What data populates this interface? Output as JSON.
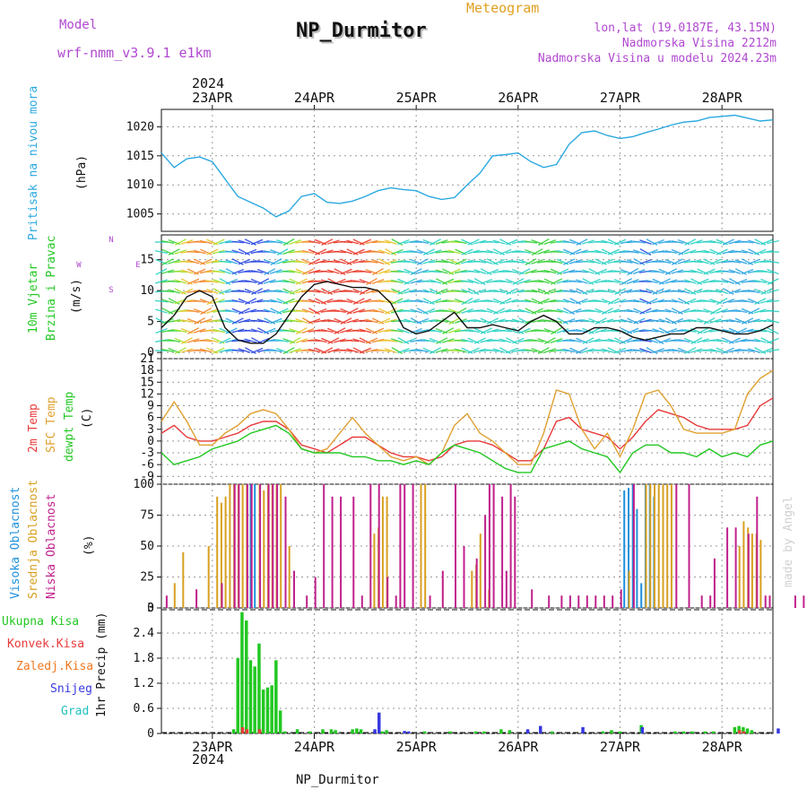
{
  "header": {
    "model_label": "Model",
    "model_value": "wrf-nmm_v3.9.1 e1km",
    "station": "NP_Durmitor",
    "product": "Meteogram",
    "coords": "lon,lat (19.0187E, 43.15N)",
    "elevation": "Nadmorska Visina 2212m",
    "model_elevation": "Nadmorska Visina u modelu 2024.23m"
  },
  "footer": {
    "station": "NP_Durmitor",
    "credit": "made by Angel"
  },
  "time_axis": {
    "year": "2024",
    "day_labels": [
      "23APR",
      "24APR",
      "25APR",
      "26APR",
      "27APR",
      "28APR"
    ],
    "start_hour_before_first_label": 12,
    "total_hours": 144
  },
  "colors": {
    "pressure": "#2aa8e0",
    "temp2m": "#e83a3a",
    "sfc": "#e0a030",
    "dewpt": "#22c822",
    "wind_speed": "#111111",
    "cloud_high": "#1e90dc",
    "cloud_mid": "#d8a020",
    "cloud_low": "#c0208c",
    "precip_total": "#22c822",
    "precip_conv": "#e83a3a",
    "precip_frz": "#f07820",
    "precip_snow": "#3838e0",
    "precip_grad": "#20c0c0"
  },
  "chart_data": [
    {
      "type": "line",
      "panel": "pressure",
      "ylabel": [
        "Pritisak na nivou mora",
        "(hPa)"
      ],
      "yticks": [
        1005,
        1010,
        1015,
        1020
      ],
      "ylim": [
        1002,
        1023
      ],
      "grid": true,
      "series": [
        {
          "name": "Pritisak na nivou mora",
          "x": [
            0,
            3,
            6,
            9,
            12,
            15,
            18,
            21,
            24,
            27,
            30,
            33,
            36,
            39,
            42,
            45,
            48,
            51,
            54,
            57,
            60,
            63,
            66,
            69,
            72,
            75,
            78,
            81,
            84,
            87,
            90,
            93,
            96,
            99,
            102,
            105,
            108,
            111,
            114,
            117,
            120,
            123,
            126,
            129,
            132,
            135,
            138,
            141,
            144
          ],
          "values": [
            1015.5,
            1013,
            1014.5,
            1014.8,
            1014,
            1011,
            1008,
            1007,
            1006,
            1004.5,
            1005.5,
            1008,
            1008.5,
            1007,
            1006.8,
            1007.2,
            1008,
            1009,
            1009.5,
            1009.2,
            1009,
            1008,
            1007.5,
            1007.8,
            1010,
            1012,
            1015,
            1015.2,
            1015.5,
            1014,
            1013,
            1013.5,
            1017,
            1019,
            1019.3,
            1018.5,
            1018,
            1018.3,
            1019,
            1019.6,
            1020.3,
            1020.8,
            1021,
            1021.6,
            1021.8,
            1022,
            1021.5,
            1021,
            1021.2
          ]
        }
      ]
    },
    {
      "type": "line",
      "panel": "wind",
      "ylabel": [
        "10m Vjetar",
        "Brzina i Pravac",
        "(m/s)"
      ],
      "yticks": [
        0,
        5,
        10,
        15
      ],
      "ylim": [
        -1,
        19
      ],
      "compass": [
        "N",
        "W",
        "E",
        "S"
      ],
      "grid": true,
      "series": [
        {
          "name": "10m Vjetar Brzina",
          "x": [
            0,
            3,
            6,
            9,
            12,
            15,
            18,
            21,
            24,
            27,
            30,
            33,
            36,
            39,
            42,
            45,
            48,
            51,
            54,
            57,
            60,
            63,
            66,
            69,
            72,
            75,
            78,
            81,
            84,
            87,
            90,
            93,
            96,
            99,
            102,
            105,
            108,
            111,
            114,
            117,
            120,
            123,
            126,
            129,
            132,
            135,
            138,
            141,
            144
          ],
          "values": [
            4,
            6,
            9,
            10,
            9,
            4,
            2,
            1.5,
            1.5,
            3,
            6,
            9,
            11,
            11.5,
            11,
            10.5,
            10.5,
            10,
            8,
            4,
            3,
            3.5,
            5,
            6.5,
            4,
            4,
            4.5,
            4,
            3.5,
            5,
            6,
            5,
            3,
            3,
            4,
            4,
            3.5,
            2.5,
            2,
            2.5,
            3,
            3,
            4,
            4,
            3.5,
            3,
            3,
            3.5,
            4.5
          ]
        }
      ]
    },
    {
      "type": "line",
      "panel": "temperature",
      "ylabel": [
        "2m Temp",
        "SFC Temp",
        "dewpt Temp",
        "(C)"
      ],
      "yticks": [
        -9,
        -6,
        -3,
        0,
        3,
        6,
        9,
        12,
        15,
        18,
        21
      ],
      "ylim": [
        -11,
        21
      ],
      "grid": true,
      "x": [
        0,
        3,
        6,
        9,
        12,
        15,
        18,
        21,
        24,
        27,
        30,
        33,
        36,
        39,
        42,
        45,
        48,
        51,
        54,
        57,
        60,
        63,
        66,
        69,
        72,
        75,
        78,
        81,
        84,
        87,
        90,
        93,
        96,
        99,
        102,
        105,
        108,
        111,
        114,
        117,
        120,
        123,
        126,
        129,
        132,
        135,
        138,
        141,
        144
      ],
      "series": [
        {
          "name": "2m Temp",
          "values": [
            2,
            4,
            1,
            0,
            0,
            1,
            2,
            4,
            5,
            5,
            3,
            -1,
            -2,
            -3,
            -1,
            1,
            1,
            -1,
            -3,
            -4,
            -4,
            -5,
            -4,
            -1,
            0,
            0,
            -1,
            -3,
            -5,
            -5,
            -2,
            5,
            6,
            3,
            2,
            1,
            -2,
            1,
            5,
            8,
            7,
            6,
            4,
            3,
            3,
            3,
            4,
            9,
            11
          ]
        },
        {
          "name": "SFC Temp",
          "values": [
            5,
            10,
            5,
            -1,
            -1,
            2,
            4,
            7,
            8,
            7,
            3,
            -2,
            -3,
            -2,
            2,
            6,
            2,
            -1,
            -4,
            -5,
            -4,
            -6,
            -3,
            4,
            7,
            2,
            0,
            -3,
            -6,
            -6,
            2,
            13,
            12,
            3,
            -2,
            2,
            -4,
            3,
            12,
            13,
            9,
            3,
            2,
            2,
            2,
            3,
            12,
            16,
            18
          ]
        },
        {
          "name": "dewpt Temp",
          "values": [
            -3,
            -6,
            -5,
            -4,
            -2,
            -1,
            0,
            2,
            3,
            4,
            2,
            -2,
            -3,
            -3,
            -3,
            -4,
            -4,
            -5,
            -5,
            -6,
            -5,
            -6,
            -3,
            -1,
            -2,
            -3,
            -5,
            -7,
            -8,
            -8,
            -2,
            -1,
            0,
            -2,
            -3,
            -4,
            -8,
            -3,
            -1,
            -1,
            -3,
            -3,
            -4,
            -2,
            -4,
            -3,
            -4,
            -1,
            0
          ]
        }
      ]
    },
    {
      "type": "bar",
      "panel": "clouds",
      "ylabel": [
        "Visoka Oblacnost",
        "Srednja Oblacnost",
        "Niska Oblacnost",
        "(%)"
      ],
      "yticks": [
        0,
        25,
        50,
        75,
        100
      ],
      "ylim": [
        0,
        100
      ],
      "grid": true,
      "series": [
        {
          "name": "Visoka Oblacnost",
          "x": [
            21,
            22,
            109,
            110,
            111,
            112,
            113,
            114,
            115,
            116
          ],
          "values": [
            100,
            100,
            95,
            97,
            100,
            80,
            20,
            100,
            100,
            90
          ]
        },
        {
          "name": "Srednja Oblacnost",
          "x": [
            3,
            5,
            11,
            13,
            14,
            15,
            16,
            17,
            18,
            19,
            20,
            23,
            24,
            25,
            26,
            27,
            28,
            30,
            50,
            51,
            52,
            53,
            61,
            62,
            73,
            74,
            75,
            77,
            110,
            114,
            115,
            116,
            117,
            118,
            119,
            120,
            136,
            137,
            138,
            139,
            140,
            141
          ],
          "values": [
            20,
            45,
            50,
            90,
            85,
            90,
            100,
            100,
            100,
            100,
            100,
            100,
            95,
            100,
            100,
            100,
            100,
            50,
            60,
            65,
            90,
            90,
            100,
            100,
            30,
            35,
            60,
            15,
            30,
            100,
            100,
            100,
            100,
            100,
            100,
            100,
            50,
            70,
            65,
            60,
            60,
            55
          ]
        },
        {
          "name": "Niska Oblacnost",
          "x": [
            1,
            8,
            14,
            17,
            18,
            20,
            21,
            23,
            25,
            26,
            27,
            29,
            31,
            34,
            36,
            38,
            40,
            42,
            45,
            47,
            49,
            51,
            53,
            55,
            56,
            57,
            59,
            63,
            66,
            69,
            71,
            74,
            76,
            77,
            78,
            80,
            81,
            82,
            83,
            87,
            91,
            94,
            96,
            98,
            100,
            102,
            104,
            106,
            108,
            111,
            121,
            124,
            127,
            129,
            130,
            133,
            135,
            138,
            140,
            142,
            143,
            149,
            151,
            169
          ],
          "values": [
            10,
            15,
            20,
            100,
            100,
            100,
            100,
            100,
            100,
            100,
            100,
            90,
            30,
            10,
            25,
            100,
            90,
            90,
            90,
            10,
            100,
            100,
            25,
            10,
            100,
            100,
            100,
            10,
            30,
            100,
            50,
            40,
            75,
            100,
            100,
            90,
            30,
            100,
            90,
            15,
            10,
            10,
            10,
            10,
            10,
            10,
            10,
            10,
            15,
            100,
            100,
            100,
            10,
            10,
            40,
            65,
            65,
            60,
            90,
            10,
            10,
            10,
            10,
            10
          ]
        }
      ]
    },
    {
      "type": "bar",
      "panel": "precipitation",
      "ylabel": [
        "1hr Precip (mm)"
      ],
      "legend": [
        "Ukupna Kisa",
        "Konvek.Kisa",
        "Zaledj.Kisa",
        "Snijeg",
        "Grad"
      ],
      "yticks": [
        0,
        0.6,
        1.2,
        1.8,
        2.4,
        3
      ],
      "ylim": [
        0,
        3
      ],
      "grid": true,
      "series": [
        {
          "name": "Ukupna Kisa",
          "x": [
            17,
            18,
            19,
            20,
            21,
            22,
            23,
            24,
            25,
            26,
            27,
            28,
            29,
            32,
            35,
            38,
            40,
            41,
            45,
            46,
            47,
            52,
            53,
            62,
            68,
            74,
            76,
            80,
            82,
            92,
            104,
            106,
            108,
            113,
            121,
            123,
            125,
            128,
            130,
            135,
            136,
            137,
            138,
            139
          ],
          "values": [
            0.1,
            1.8,
            2.9,
            2.7,
            1.75,
            1.6,
            2.15,
            1.05,
            1.1,
            1.15,
            1.75,
            0.55,
            0.05,
            0.1,
            0.05,
            0.1,
            0.1,
            0.08,
            0.1,
            0.12,
            0.1,
            0.05,
            0.08,
            0.05,
            0.05,
            0.05,
            0.05,
            0.1,
            0.08,
            0.05,
            0.05,
            0.08,
            0.05,
            0.2,
            0.05,
            0.05,
            0.05,
            0.05,
            0.05,
            0.15,
            0.18,
            0.15,
            0.12,
            0.08
          ]
        },
        {
          "name": "Konvek.Kisa",
          "x": [
            19,
            20,
            23,
            136,
            137
          ],
          "values": [
            0.15,
            0.1,
            0.1,
            0.08,
            0.05
          ]
        },
        {
          "name": "Snijeg",
          "x": [
            50,
            51,
            57,
            58,
            86,
            89,
            99,
            113,
            145
          ],
          "values": [
            0.1,
            0.5,
            0.06,
            0.05,
            0.1,
            0.18,
            0.15,
            0.15,
            0.12
          ]
        }
      ]
    }
  ]
}
